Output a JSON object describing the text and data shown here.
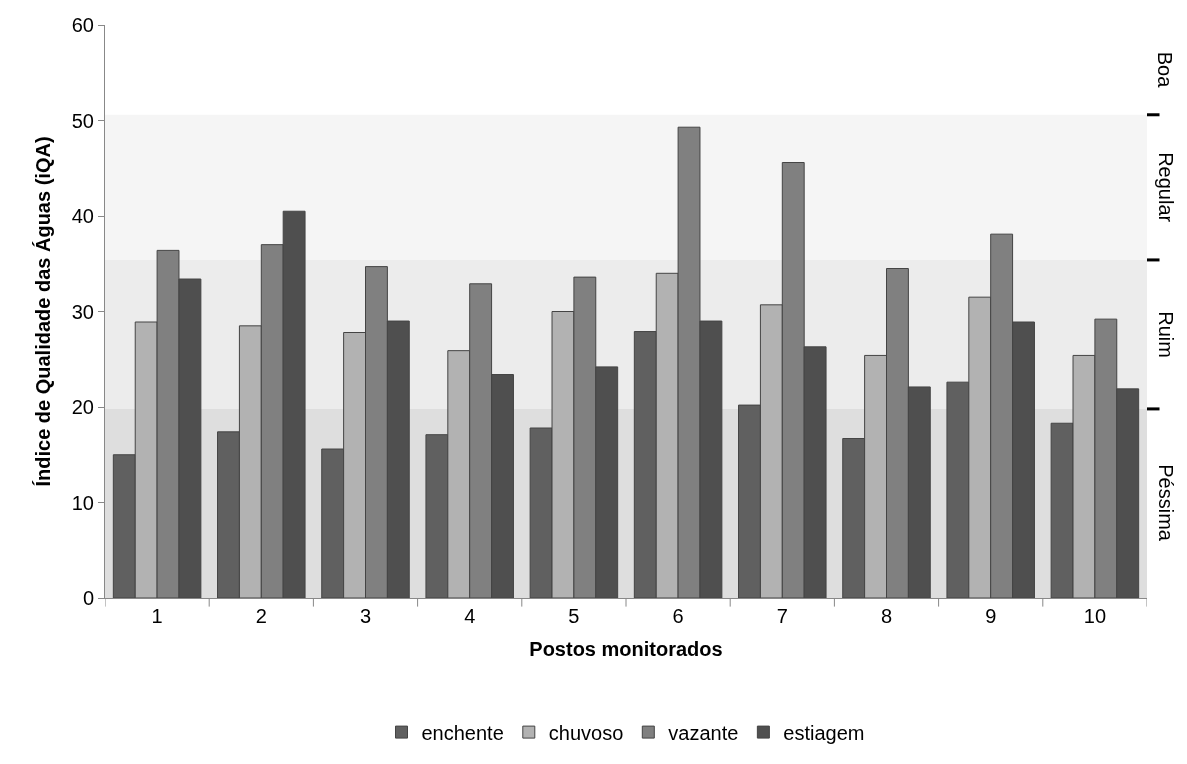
{
  "chart_data": {
    "type": "bar",
    "xlabel": "Postos monitorados",
    "ylabel": "Índice de Qualidade das Águas (iQA)",
    "categories": [
      "1",
      "2",
      "3",
      "4",
      "5",
      "6",
      "7",
      "8",
      "9",
      "10"
    ],
    "series": [
      {
        "name": "enchente",
        "color": "#606060",
        "values": [
          15.0,
          17.4,
          15.6,
          17.1,
          17.8,
          27.9,
          20.2,
          16.7,
          22.6,
          18.3
        ]
      },
      {
        "name": "chuvoso",
        "color": "#b2b2b2",
        "values": [
          28.9,
          28.5,
          27.8,
          25.9,
          30.0,
          34.0,
          30.7,
          25.4,
          31.5,
          25.4
        ]
      },
      {
        "name": "vazante",
        "color": "#808080",
        "values": [
          36.4,
          37.0,
          34.7,
          32.9,
          33.6,
          49.3,
          45.6,
          34.5,
          38.1,
          29.2
        ]
      },
      {
        "name": "estiagem",
        "color": "#4f4f4f",
        "values": [
          33.4,
          40.5,
          29.0,
          23.4,
          24.2,
          29.0,
          26.3,
          22.1,
          28.9,
          21.9
        ]
      }
    ],
    "ylim": [
      0,
      60
    ],
    "yticks": [
      0,
      10,
      20,
      30,
      40,
      50,
      60
    ],
    "bands": [
      {
        "axis": "y",
        "from": 0,
        "to": 19.8,
        "label": "Péssima",
        "color": "#dedede"
      },
      {
        "axis": "y",
        "from": 19.8,
        "to": 35.4,
        "label": "Ruim",
        "color": "#ececec"
      },
      {
        "axis": "y",
        "from": 35.4,
        "to": 50.6,
        "label": "Regular",
        "color": "#f5f5f5"
      }
    ],
    "annotations": [
      "Boa"
    ],
    "grid": false,
    "legend": "bottom"
  }
}
